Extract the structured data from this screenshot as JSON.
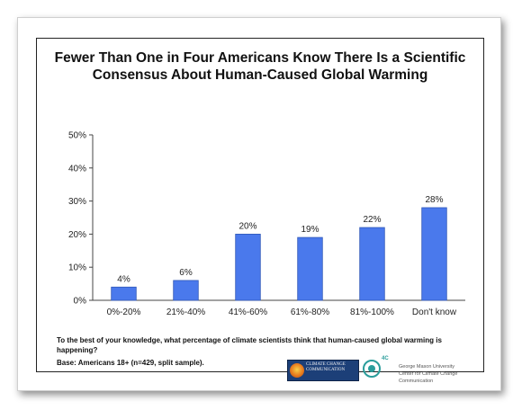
{
  "title_line1": "Fewer Than One in Four Americans Know There Is a Scientific",
  "title_line2": "Consensus About Human-Caused Global Warming",
  "question": "To the best of your knowledge, what percentage of climate scientists think that human-caused global warming is happening?",
  "base": "Base: Americans 18+ (n=429, split sample).",
  "logos": {
    "c3_text": "CLIMATE CHANGE COMMUNICATION",
    "fourc": "4C",
    "gmu_line1": "George Mason University",
    "gmu_line2": "Center for Climate Change Communication"
  },
  "colors": {
    "bar": "#4a79ec",
    "bar_stroke": "#2f57b8"
  },
  "chart_data": {
    "type": "bar",
    "title": "Fewer Than One in Four Americans Know There Is a Scientific Consensus About Human-Caused Global Warming",
    "categories": [
      "0%-20%",
      "21%-40%",
      "41%-60%",
      "61%-80%",
      "81%-100%",
      "Don't know"
    ],
    "values": [
      4,
      6,
      20,
      19,
      22,
      28
    ],
    "data_labels": [
      "4%",
      "6%",
      "20%",
      "19%",
      "22%",
      "28%"
    ],
    "y_ticks": [
      "0%",
      "10%",
      "20%",
      "30%",
      "40%",
      "50%"
    ],
    "ylim": [
      0,
      50
    ],
    "xlabel": "",
    "ylabel": "",
    "grid": false,
    "legend": "none"
  }
}
